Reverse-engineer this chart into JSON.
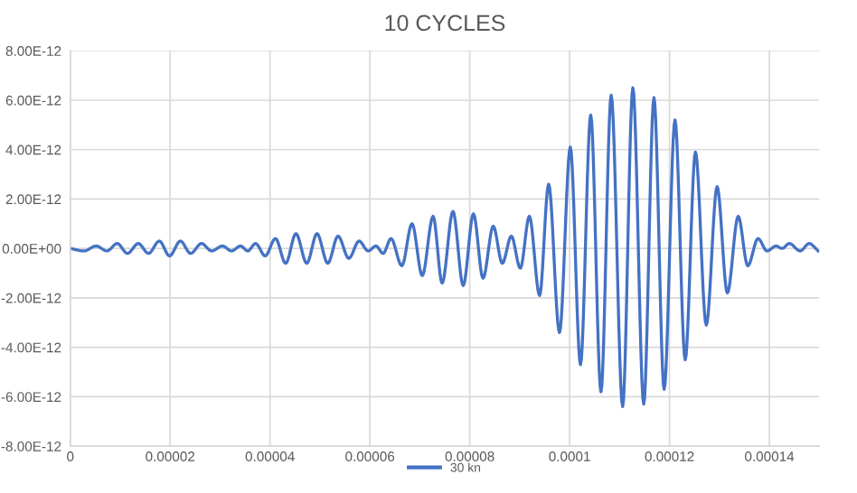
{
  "chart_data": {
    "type": "line",
    "title": "10 CYCLES",
    "xlim": [
      0,
      0.00015
    ],
    "ylim": [
      -8e-12,
      8e-12
    ],
    "xticks": [
      {
        "value": 0,
        "label": "0"
      },
      {
        "value": 2e-05,
        "label": "0.00002"
      },
      {
        "value": 4e-05,
        "label": "0.00004"
      },
      {
        "value": 6e-05,
        "label": "0.00006"
      },
      {
        "value": 8e-05,
        "label": "0.00008"
      },
      {
        "value": 0.0001,
        "label": "0.0001"
      },
      {
        "value": 0.00012,
        "label": "0.00012"
      },
      {
        "value": 0.00014,
        "label": "0.00014"
      }
    ],
    "yticks": [
      {
        "value": -8e-12,
        "label": "-8.00E-12"
      },
      {
        "value": -6e-12,
        "label": "-6.00E-12"
      },
      {
        "value": -4e-12,
        "label": "-4.00E-12"
      },
      {
        "value": -2e-12,
        "label": "-2.00E-12"
      },
      {
        "value": 0,
        "label": "0.00E+00"
      },
      {
        "value": 2e-12,
        "label": "2.00E-12"
      },
      {
        "value": 4e-12,
        "label": "4.00E-12"
      },
      {
        "value": 6e-12,
        "label": "6.00E-12"
      },
      {
        "value": 8e-12,
        "label": "8.00E-12"
      }
    ],
    "grid": true,
    "legend": "bottom",
    "marker": "none",
    "line_style": "solid",
    "series": [
      {
        "name": "30 kn",
        "color": "#4472c4",
        "x": [
          0,
          2.77e-06,
          5.18e-06,
          7.35e-06,
          9.4e-06,
          1.145e-05,
          1.362e-05,
          1.567e-05,
          1.783e-05,
          1.988e-05,
          2.205e-05,
          2.41e-05,
          2.627e-05,
          2.832e-05,
          3.049e-05,
          3.229e-05,
          3.41e-05,
          3.555e-05,
          3.711e-05,
          3.904e-05,
          4.109e-05,
          4.314e-05,
          4.519e-05,
          4.736e-05,
          4.941e-05,
          5.157e-05,
          5.362e-05,
          5.579e-05,
          5.784e-05,
          5.965e-05,
          6.121e-05,
          6.266e-05,
          6.423e-05,
          6.64e-05,
          6.844e-05,
          7.049e-05,
          7.266e-05,
          7.447e-05,
          7.664e-05,
          7.869e-05,
          8.074e-05,
          8.266e-05,
          8.471e-05,
          8.652e-05,
          8.833e-05,
          9.013e-05,
          9.194e-05,
          9.399e-05,
          9.58e-05,
          9.797e-05,
          0.00010014,
          0.00010218,
          0.00010423,
          0.00010628,
          0.00010833,
          0.00011062,
          0.00011267,
          0.00011484,
          0.00011689,
          0.00011893,
          0.0001211,
          0.00012315,
          0.0001252,
          0.00012737,
          0.00012954,
          0.00013159,
          0.00013376,
          0.00013568,
          0.00013773,
          0.00013954,
          0.00014135,
          0.00014255,
          0.000144,
          0.00014617,
          0.00014797,
          0.00014978
        ],
        "values": [
          0,
          -1e-13,
          1e-13,
          -1e-13,
          2e-13,
          -2e-13,
          2e-13,
          -2e-13,
          3e-13,
          -3e-13,
          3e-13,
          -2e-13,
          2e-13,
          -1e-13,
          1e-13,
          -1e-13,
          1e-13,
          -1e-13,
          2e-13,
          -3e-13,
          4e-13,
          -6e-13,
          6e-13,
          -6e-13,
          6e-13,
          -6e-13,
          5e-13,
          -4e-13,
          3e-13,
          -1e-13,
          1e-13,
          -2e-13,
          4e-13,
          -7e-13,
          1e-12,
          -1.1e-12,
          1.3e-12,
          -1.4e-12,
          1.5e-12,
          -1.5e-12,
          1.4e-12,
          -1.2e-12,
          9e-13,
          -6e-13,
          5e-13,
          -8e-13,
          1.3e-12,
          -1.9e-12,
          2.6e-12,
          -3.4e-12,
          4.1e-12,
          -4.7e-12,
          5.4e-12,
          -5.8e-12,
          6.2e-12,
          -6.4e-12,
          6.5e-12,
          -6.3e-12,
          6.1e-12,
          -5.7e-12,
          5.2e-12,
          -4.5e-12,
          3.9e-12,
          -3.1e-12,
          2.5e-12,
          -1.8e-12,
          1.3e-12,
          -7e-13,
          4e-13,
          -1e-13,
          1e-13,
          0,
          2e-13,
          -1e-13,
          2e-13,
          -1e-13
        ]
      }
    ]
  }
}
